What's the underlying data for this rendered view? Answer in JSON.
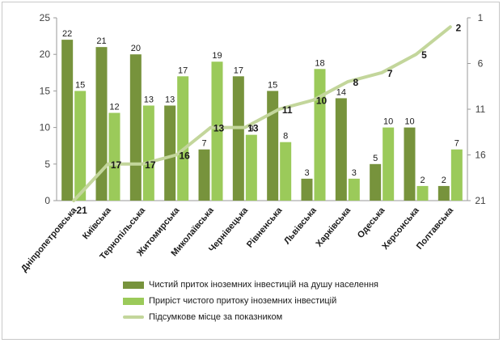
{
  "chart_data": {
    "type": "bar",
    "categories": [
      "Дніпропетровська",
      "Київська",
      "Тернопільська",
      "Житомирська",
      "Миколаївська",
      "Чернівецька",
      "Рівненська",
      "Львівська",
      "Харківська",
      "Одеська",
      "Херсонська",
      "Полтавська"
    ],
    "series": [
      {
        "name": "Чистий приток іноземних інвестицій на душу населення",
        "kind": "bar",
        "axis": "left",
        "color": "#77933c",
        "values": [
          22,
          21,
          20,
          13,
          7,
          17,
          15,
          3,
          14,
          5,
          10,
          2
        ]
      },
      {
        "name": "Приріст чистого притоку іноземних інвестицій",
        "kind": "bar",
        "axis": "left",
        "color": "#9bca5a",
        "values": [
          15,
          12,
          13,
          17,
          19,
          9,
          8,
          18,
          3,
          10,
          2,
          7
        ]
      },
      {
        "name": "Підсумкове місце за показником",
        "kind": "line",
        "axis": "right",
        "color": "#c3d69b",
        "values": [
          21,
          17,
          17,
          16,
          13,
          13,
          11,
          10,
          8,
          7,
          5,
          2
        ]
      }
    ],
    "y_left": {
      "ylim": [
        0,
        25
      ],
      "ticks": [
        0,
        5,
        10,
        15,
        20,
        25
      ]
    },
    "y_right": {
      "ylim": [
        1,
        21
      ],
      "reversed": true,
      "ticks": [
        1,
        6,
        11,
        16,
        21
      ]
    },
    "grid": false,
    "legend_position": "bottom"
  }
}
